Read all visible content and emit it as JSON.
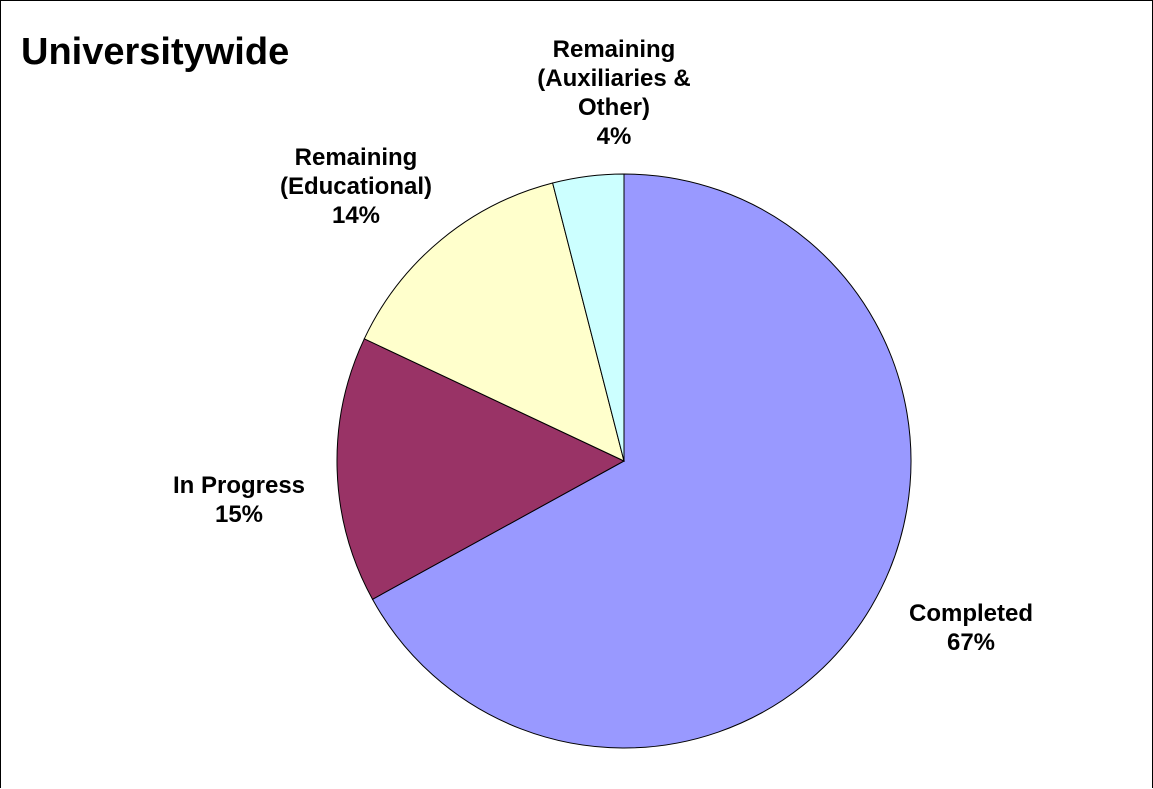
{
  "chart_data": {
    "type": "pie",
    "title": "Universitywide",
    "slices": [
      {
        "label_lines": [
          "Completed",
          "67%"
        ],
        "value": 67,
        "color": "#9999ff"
      },
      {
        "label_lines": [
          "In Progress",
          "15%"
        ],
        "value": 15,
        "color": "#993366"
      },
      {
        "label_lines": [
          "Remaining",
          "(Educational)",
          "14%"
        ],
        "value": 14,
        "color": "#ffffcc"
      },
      {
        "label_lines": [
          "Remaining",
          "(Auxiliaries &",
          "Other)",
          "4%"
        ],
        "value": 4,
        "color": "#ccffff"
      }
    ],
    "start": "12 o'clock",
    "direction": "clockwise"
  }
}
